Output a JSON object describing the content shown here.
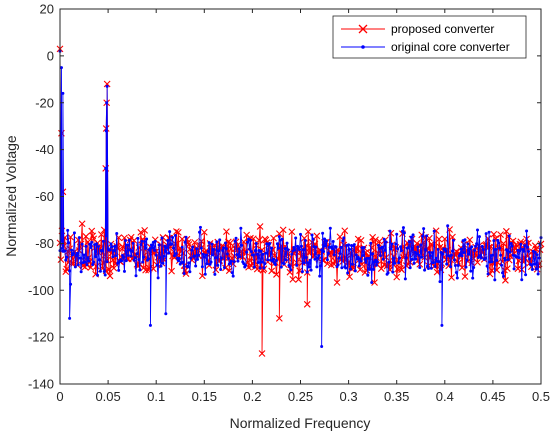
{
  "chart_data": {
    "type": "line",
    "title": "",
    "xlabel": "Normalized Frequency",
    "ylabel": "Normalized Voltage",
    "xlim": [
      0,
      0.5
    ],
    "ylim": [
      -140,
      20
    ],
    "xticks": [
      "0",
      "0.05",
      "0.1",
      "0.15",
      "0.2",
      "0.25",
      "0.3",
      "0.35",
      "0.4",
      "0.45",
      "0.5"
    ],
    "yticks": [
      "20",
      "0",
      "-20",
      "-40",
      "-60",
      "-80",
      "-100",
      "-120",
      "-140"
    ],
    "grid": false,
    "legend_position": "top-right",
    "series": [
      {
        "name": "proposed converter",
        "color": "#ff0000",
        "marker": "x",
        "noise_floor_approx": [
          -100,
          -65
        ],
        "peaks": [
          {
            "x": 0.0,
            "y": 3
          },
          {
            "x": 0.0015,
            "y": -33
          },
          {
            "x": 0.003,
            "y": -58
          },
          {
            "x": 0.049,
            "y": -12
          },
          {
            "x": 0.0485,
            "y": -20
          },
          {
            "x": 0.048,
            "y": -31
          },
          {
            "x": 0.0475,
            "y": -48
          },
          {
            "x": 0.21,
            "y": -127
          },
          {
            "x": 0.228,
            "y": -112
          },
          {
            "x": 0.257,
            "y": -106
          }
        ]
      },
      {
        "name": "original core converter",
        "color": "#0000ff",
        "marker": ".",
        "noise_floor_approx": [
          -100,
          -65
        ],
        "peaks": [
          {
            "x": 0.0,
            "y": 2
          },
          {
            "x": 0.0015,
            "y": -5
          },
          {
            "x": 0.003,
            "y": -16
          },
          {
            "x": 0.049,
            "y": -13
          },
          {
            "x": 0.0485,
            "y": -20
          },
          {
            "x": 0.048,
            "y": -32
          },
          {
            "x": 0.0475,
            "y": -48
          },
          {
            "x": 0.272,
            "y": -124
          },
          {
            "x": 0.094,
            "y": -115
          },
          {
            "x": 0.397,
            "y": -115
          },
          {
            "x": 0.01,
            "y": -112
          },
          {
            "x": 0.11,
            "y": -110
          }
        ]
      }
    ]
  }
}
